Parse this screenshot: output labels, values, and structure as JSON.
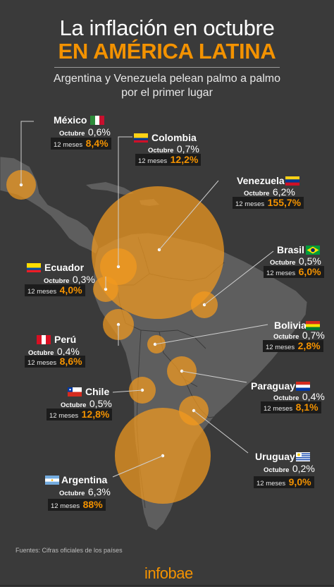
{
  "header": {
    "title_line1": "La inflación en octubre",
    "title_line2": "EN AMÉRICA LATINA",
    "subtitle_line1": "Argentina y Venezuela pelean palmo a palmo",
    "subtitle_line2": "por el primer lugar"
  },
  "colors": {
    "accent": "#f39200",
    "background": "#3a3a3a",
    "land": "#5e5e5e",
    "bubble": "#f39a1e"
  },
  "countries": [
    {
      "name": "México",
      "octubre_label": "Octubre",
      "octubre": "0,6%",
      "meses_label": "12 meses",
      "meses": "8,4%"
    },
    {
      "name": "Colombia",
      "octubre_label": "Octubre",
      "octubre": "0,7%",
      "meses_label": "12 meses",
      "meses": "12,2%"
    },
    {
      "name": "Venezuela",
      "octubre_label": "Octubre",
      "octubre": "6,2%",
      "meses_label": "12 meses",
      "meses": "155,7%"
    },
    {
      "name": "Ecuador",
      "octubre_label": "Octubre",
      "octubre": "0,3%",
      "meses_label": "12 meses",
      "meses": "4,0%"
    },
    {
      "name": "Brasil",
      "octubre_label": "Octubre",
      "octubre": "0,5%",
      "meses_label": "12 meses",
      "meses": "6,0%"
    },
    {
      "name": "Perú",
      "octubre_label": "Octubre",
      "octubre": "0,4%",
      "meses_label": "12 meses",
      "meses": "8,6%"
    },
    {
      "name": "Bolivia",
      "octubre_label": "Octubre",
      "octubre": "0,7%",
      "meses_label": "12 meses",
      "meses": "2,8%"
    },
    {
      "name": "Paraguay",
      "octubre_label": "Octubre",
      "octubre": "0,4%",
      "meses_label": "12 meses",
      "meses": "8,1%"
    },
    {
      "name": "Chile",
      "octubre_label": "Octubre",
      "octubre": "0,5%",
      "meses_label": "12 meses",
      "meses": "12,8%"
    },
    {
      "name": "Uruguay",
      "octubre_label": "Octubre",
      "octubre": "0,2%",
      "meses_label": "12 meses",
      "meses": "9,0%"
    },
    {
      "name": "Argentina",
      "octubre_label": "Octubre",
      "octubre": "6,3%",
      "meses_label": "12 meses",
      "meses": "88%"
    }
  ],
  "footer": {
    "source": "Fuentes: Cifras oficiales de los países",
    "logo": "infobae"
  }
}
